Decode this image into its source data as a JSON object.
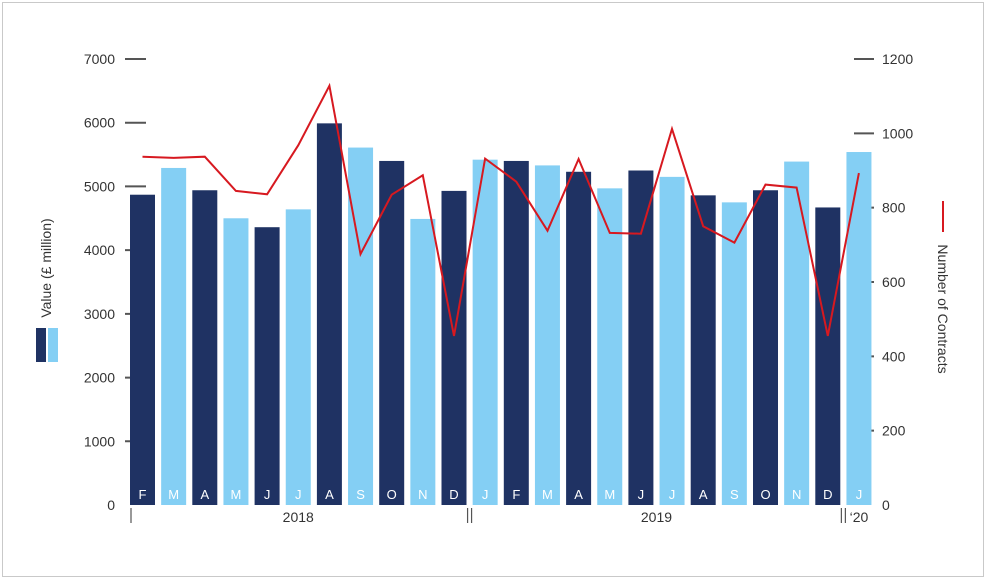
{
  "chart_data": {
    "type": "bar",
    "categories": [
      "F",
      "M",
      "A",
      "M",
      "J",
      "J",
      "A",
      "S",
      "O",
      "N",
      "D",
      "J",
      "F",
      "M",
      "A",
      "M",
      "J",
      "J",
      "A",
      "S",
      "O",
      "N",
      "D",
      "J"
    ],
    "years": [
      {
        "label": "2018",
        "start": 0,
        "end": 10
      },
      {
        "label": "2019",
        "start": 11,
        "end": 22
      },
      {
        "label": "‘20",
        "start": 23,
        "end": 23
      }
    ],
    "series": [
      {
        "values": [
          4870,
          5290,
          4940,
          4500,
          4360,
          4640,
          5990,
          5610,
          5400,
          4490,
          4930,
          5420,
          5400,
          5330,
          5230,
          4970,
          5250,
          5150,
          4860,
          4750,
          4940,
          5390,
          4670,
          5540
        ],
        "shades": [
          "dark",
          "light",
          "dark",
          "light",
          "dark",
          "light",
          "dark",
          "light",
          "dark",
          "light",
          "dark",
          "light",
          "dark",
          "light",
          "dark",
          "light",
          "dark",
          "light",
          "dark",
          "light",
          "dark",
          "light",
          "dark",
          "light"
        ],
        "axis": "left"
      },
      {
        "type": "line",
        "values": [
          937,
          934,
          937,
          845,
          836,
          968,
          1128,
          675,
          835,
          887,
          455,
          932,
          870,
          738,
          931,
          732,
          730,
          1012,
          750,
          706,
          862,
          854,
          455,
          893
        ],
        "axis": "right"
      }
    ],
    "ylabel": "Value (£ million)",
    "y2label": "Number of Contracts",
    "ylim": [
      0,
      7000
    ],
    "y2lim": [
      0,
      1200
    ],
    "yticks": [
      0,
      1000,
      2000,
      3000,
      4000,
      5000,
      6000,
      7000
    ],
    "y2ticks": [
      0,
      200,
      400,
      600,
      800,
      1000,
      1200
    ],
    "grid": false,
    "colors": {
      "dark": "#1f3263",
      "light": "#84cff4",
      "line": "#d71920",
      "text": "#333333",
      "axis": "#555555"
    }
  }
}
